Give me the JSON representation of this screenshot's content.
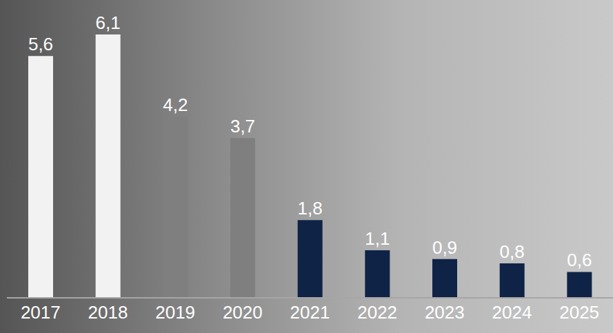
{
  "chart_data": {
    "type": "bar",
    "categories": [
      "2017",
      "2018",
      "2019",
      "2020",
      "2021",
      "2022",
      "2023",
      "2024",
      "2025"
    ],
    "values": [
      5.6,
      6.1,
      4.2,
      3.7,
      1.8,
      1.1,
      0.9,
      0.8,
      0.6
    ],
    "value_labels": [
      "5,6",
      "6,1",
      "4,2",
      "3,7",
      "1,8",
      "1,1",
      "0,9",
      "0,8",
      "0,6"
    ],
    "colors": [
      "#f2f2f2",
      "#f2f2f2",
      "#7f7f7f",
      "#7f7f7f",
      "#0f2346",
      "#0f2346",
      "#0f2346",
      "#0f2346",
      "#0f2346"
    ],
    "data_labels": true,
    "tick_labels": "x"
  }
}
